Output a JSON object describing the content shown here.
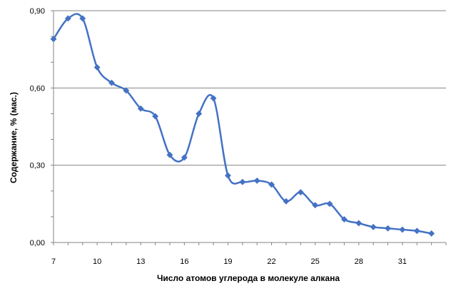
{
  "chart_data": {
    "type": "line",
    "title": "",
    "xlabel": "Число атомов углерода в молекуле алкана",
    "ylabel": "Содержание, % (мас.)",
    "xlim": [
      7,
      34
    ],
    "ylim": [
      0,
      0.9
    ],
    "x_ticks": [
      7,
      10,
      13,
      16,
      19,
      22,
      25,
      28,
      31
    ],
    "x_tick_labels": [
      "7",
      "10",
      "13",
      "16",
      "19",
      "22",
      "25",
      "28",
      "31"
    ],
    "y_ticks": [
      0,
      0.3,
      0.6,
      0.9
    ],
    "y_tick_labels": [
      "0,00",
      "0,30",
      "0,60",
      "0,90"
    ],
    "grid": "horizontal-major",
    "legend": "none",
    "series": [
      {
        "color": "#4472C4",
        "marker": "diamond",
        "smoothed": true,
        "x": [
          7,
          8,
          9,
          10,
          11,
          12,
          13,
          14,
          15,
          16,
          17,
          18,
          19,
          20,
          21,
          22,
          23,
          24,
          25,
          26,
          27,
          28,
          29,
          30,
          31,
          32,
          33
        ],
        "values": [
          0.79,
          0.87,
          0.87,
          0.68,
          0.62,
          0.59,
          0.52,
          0.49,
          0.34,
          0.33,
          0.5,
          0.56,
          0.26,
          0.235,
          0.24,
          0.225,
          0.16,
          0.195,
          0.145,
          0.15,
          0.09,
          0.075,
          0.06,
          0.055,
          0.05,
          0.045,
          0.035
        ]
      }
    ]
  }
}
